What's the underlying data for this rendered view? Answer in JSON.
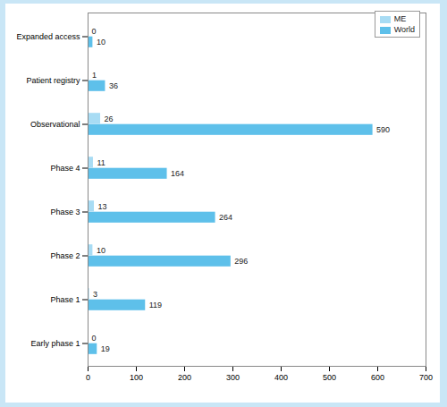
{
  "chart_data": {
    "type": "bar",
    "orientation": "horizontal",
    "data_labels": true,
    "legend": "top-right",
    "grid": false,
    "categories": [
      "Expanded access",
      "Patient registry",
      "Observational",
      "Phase 4",
      "Phase 3",
      "Phase 2",
      "Phase 1",
      "Early phase 1"
    ],
    "series": [
      {
        "name": "ME",
        "color": "#a8dcf4",
        "values": [
          0,
          1,
          26,
          11,
          13,
          10,
          3,
          0
        ]
      },
      {
        "name": "World",
        "color": "#5ec0ea",
        "values": [
          10,
          36,
          590,
          164,
          264,
          296,
          119,
          19
        ]
      }
    ],
    "xlim": [
      0,
      700
    ],
    "xticks": [
      0,
      100,
      200,
      300,
      400,
      500,
      600,
      700
    ]
  }
}
